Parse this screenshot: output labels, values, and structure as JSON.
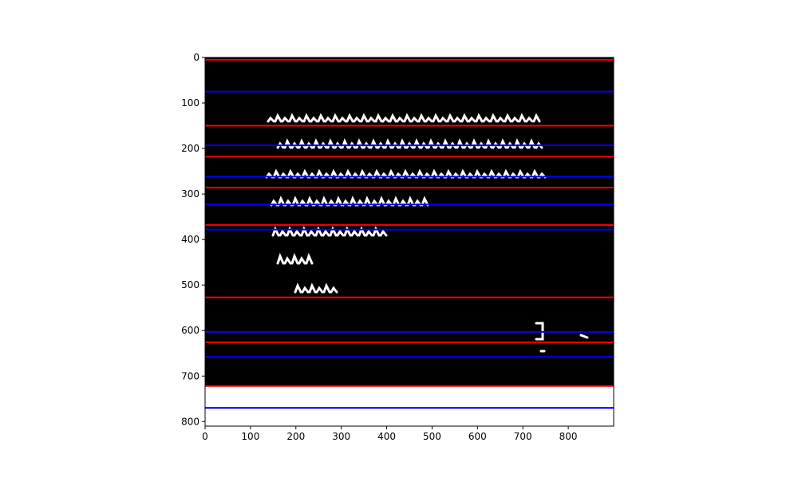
{
  "chart_data": {
    "type": "image",
    "title": "",
    "xlabel": "",
    "ylabel": "",
    "xlim": [
      0,
      900
    ],
    "ylim": [
      810,
      0
    ],
    "xticks": [
      0,
      100,
      200,
      300,
      400,
      500,
      600,
      700,
      800
    ],
    "yticks": [
      0,
      100,
      200,
      300,
      400,
      500,
      600,
      700,
      800
    ],
    "image_content": "binarized handwritten manuscript text (white strokes on black)",
    "image_dark_region": [
      0,
      722
    ],
    "series": [
      {
        "color": "#ff0000",
        "lines_y": [
          5,
          150,
          218,
          286,
          368,
          527,
          626,
          722
        ]
      },
      {
        "color": "#0000ff",
        "lines_y": [
          75,
          193,
          262,
          323,
          378,
          603,
          658,
          770
        ]
      }
    ]
  }
}
